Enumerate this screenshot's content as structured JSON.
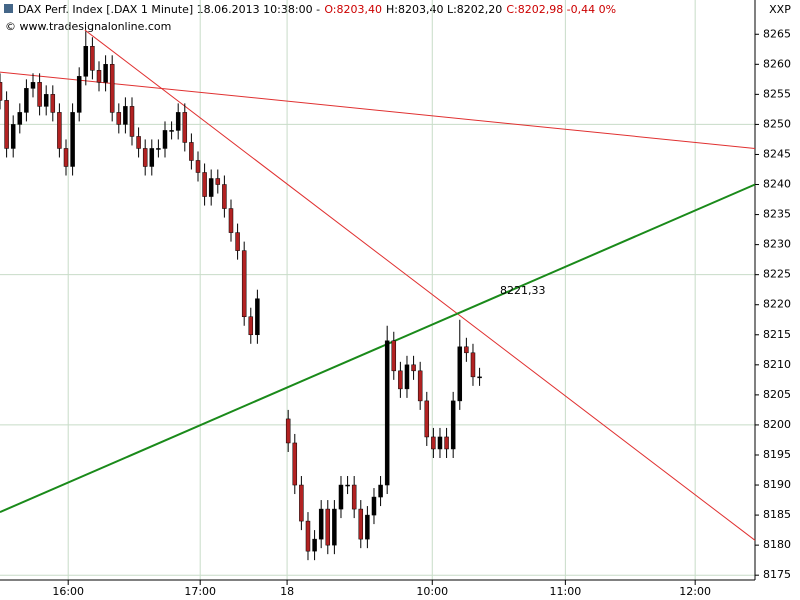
{
  "chart_data": {
    "type": "candlestick",
    "title_parts": [
      {
        "text": "DAX Perf. Index [.DAX  1 Minute] 18.06.2013 10:38:00 -",
        "color": "#000000"
      },
      {
        "text": "O:8203,40",
        "color": "#cc0000"
      },
      {
        "text": "H:8203,40 L:8202,20",
        "color": "#000000"
      },
      {
        "text": "C:8202,98 -0,44 0%",
        "color": "#cc0000"
      }
    ],
    "subtitle": "© www.tradesignalonline.com",
    "corner_label": "XXP",
    "x": [
      0,
      3,
      6,
      9,
      12,
      15,
      18,
      21,
      24,
      27,
      30,
      33,
      36,
      39,
      42,
      45,
      48,
      51,
      54,
      57,
      60,
      63,
      66,
      69,
      72,
      75,
      78,
      81,
      84,
      87,
      90,
      93,
      96,
      99,
      102,
      105,
      108,
      111,
      114,
      117,
      131,
      134,
      137,
      140,
      143,
      146,
      149,
      152,
      155,
      158,
      161,
      164,
      167,
      170,
      173,
      176,
      179,
      182,
      185,
      188,
      191,
      194,
      197,
      200,
      203,
      206,
      209,
      212,
      215,
      218
    ],
    "open": [
      8257,
      8254,
      8246,
      8250,
      8252,
      8256,
      8257,
      8253,
      8255,
      8252,
      8246,
      8243,
      8252,
      8258,
      8263,
      8259,
      8257,
      8260,
      8252,
      8250,
      8253,
      8248,
      8246,
      8243,
      8246,
      8246,
      8249,
      8249,
      8252,
      8247,
      8244,
      8242,
      8238,
      8241,
      8240,
      8236,
      8232,
      8229,
      8218,
      8215,
      8201,
      8197,
      8190,
      8184,
      8179,
      8181,
      8186,
      8180,
      8186,
      8190,
      8190,
      8186,
      8181,
      8185,
      8188,
      8190,
      8214,
      8209,
      8206,
      8210,
      8209,
      8204,
      8198,
      8196,
      8198,
      8196,
      8204,
      8213,
      8212,
      8208
    ],
    "high": [
      8258.5,
      8255.5,
      8251.5,
      8253.5,
      8257.5,
      8258.5,
      8258.5,
      8256.5,
      8256.5,
      8253.5,
      8247.5,
      8253.5,
      8259.5,
      8265.5,
      8264.5,
      8260.5,
      8261.5,
      8261.5,
      8253.5,
      8254.5,
      8254.5,
      8249.5,
      8247.5,
      8247.5,
      8247.5,
      8250.5,
      8250.5,
      8253.5,
      8253.5,
      8248.5,
      8245.5,
      8243.5,
      8242.5,
      8242.5,
      8241.5,
      8237.5,
      8233.5,
      8230.5,
      8219.5,
      8222.5,
      8202.5,
      8198.5,
      8191.5,
      8185.5,
      8182.5,
      8187.5,
      8187.5,
      8187.5,
      8191.5,
      8191.5,
      8191.5,
      8187.5,
      8186.5,
      8189.5,
      8191.5,
      8216.5,
      8215.5,
      8210.5,
      8211.5,
      8211.5,
      8210.5,
      8205.5,
      8199.5,
      8199.5,
      8199.5,
      8205.5,
      8217.5,
      8214.5,
      8213.5,
      8209.5
    ],
    "low": [
      8252.5,
      8244.5,
      8244.5,
      8248.5,
      8250.5,
      8254.5,
      8251.5,
      8251.5,
      8250.5,
      8244.5,
      8241.5,
      8241.5,
      8250.5,
      8256.5,
      8257.5,
      8255.5,
      8255.5,
      8250.5,
      8248.5,
      8248.5,
      8246.5,
      8244.5,
      8241.5,
      8241.5,
      8244.5,
      8244.5,
      8247.5,
      8247.5,
      8245.5,
      8242.5,
      8240.5,
      8236.5,
      8236.5,
      8238.5,
      8234.5,
      8230.5,
      8227.5,
      8216.5,
      8213.5,
      8213.5,
      8195.5,
      8188.5,
      8182.5,
      8177.5,
      8177.5,
      8179.5,
      8178.5,
      8178.5,
      8184.5,
      8188.5,
      8184.5,
      8179.5,
      8179.5,
      8183.5,
      8186.5,
      8188.5,
      8207.5,
      8204.5,
      8204.5,
      8207.5,
      8202.5,
      8196.5,
      8194.5,
      8194.5,
      8194.5,
      8194.5,
      8202.5,
      8210.5,
      8206.5,
      8206.5
    ],
    "close": [
      8254,
      8246,
      8250,
      8252,
      8256,
      8257,
      8253,
      8255,
      8252,
      8246,
      8243,
      8252,
      8258,
      8263,
      8259,
      8257,
      8260,
      8252,
      8250,
      8253,
      8248,
      8246,
      8243,
      8246,
      8246,
      8249,
      8249,
      8252,
      8247,
      8244,
      8242,
      8238,
      8241,
      8240,
      8236,
      8232,
      8229,
      8218,
      8215,
      8221,
      8197,
      8190,
      8184,
      8179,
      8181,
      8186,
      8180,
      8186,
      8190,
      8190,
      8186,
      8181,
      8185,
      8188,
      8190,
      8214,
      8209,
      8206,
      8210,
      8209,
      8204,
      8198,
      8196,
      8198,
      8196,
      8204,
      8213,
      8212,
      8208,
      8208
    ],
    "up_color": "#000000",
    "down_color": "#b22222",
    "trendlines": [
      {
        "color": "#e03030",
        "x": [
          0,
          343.2
        ],
        "y": [
          8258.7,
          8246.0
        ]
      },
      {
        "color": "#e03030",
        "x": [
          38.6,
          343.2
        ],
        "y": [
          8265.7,
          8180.8
        ]
      },
      {
        "color": "#1a8a1a",
        "x": [
          0,
          343.2
        ],
        "y": [
          8185.5,
          8240.0
        ],
        "label": "8221,33"
      }
    ],
    "xlim": [
      0,
      343.2
    ],
    "xticks": [
      {
        "value": 31,
        "label": "16:00"
      },
      {
        "value": 91,
        "label": "17:00"
      },
      {
        "value": 130.5,
        "label": "18"
      },
      {
        "value": 196.5,
        "label": "10:00"
      },
      {
        "value": 257,
        "label": "11:00"
      },
      {
        "value": 316,
        "label": "12:00"
      }
    ],
    "ylim": [
      8174.2,
      8270.7
    ],
    "yticks": [
      8175,
      8180,
      8185,
      8190,
      8195,
      8200,
      8205,
      8210,
      8215,
      8220,
      8225,
      8230,
      8235,
      8240,
      8245,
      8250,
      8255,
      8260,
      8265
    ],
    "ygrid": [
      8175,
      8200,
      8225,
      8250
    ],
    "grid": true
  }
}
